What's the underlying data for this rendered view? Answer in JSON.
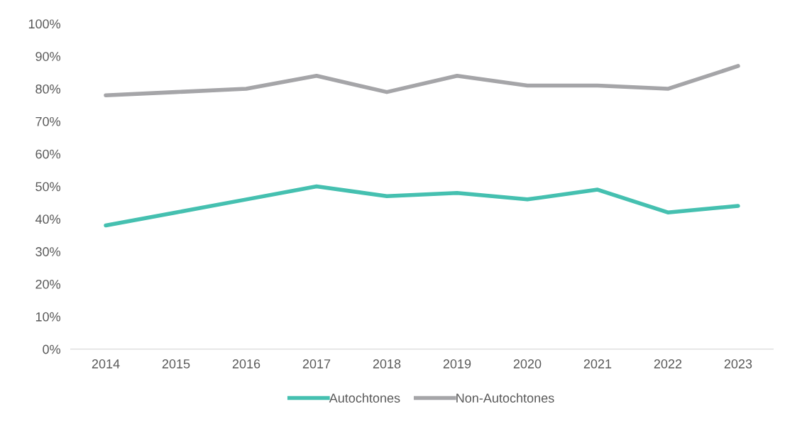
{
  "chart_data": {
    "type": "line",
    "categories": [
      "2014",
      "2015",
      "2016",
      "2017",
      "2018",
      "2019",
      "2020",
      "2021",
      "2022",
      "2023"
    ],
    "series": [
      {
        "name": "Autochtones",
        "color": "#45c0b0",
        "values": [
          38,
          42,
          46,
          50,
          47,
          48,
          46,
          49,
          42,
          44
        ]
      },
      {
        "name": "Non-Autochtones",
        "color": "#a5a5a8",
        "values": [
          78,
          79,
          80,
          84,
          79,
          84,
          81,
          81,
          80,
          87
        ]
      }
    ],
    "ylim": [
      0,
      100
    ],
    "yticks": [
      {
        "value": 0,
        "label": "0%"
      },
      {
        "value": 10,
        "label": "10%"
      },
      {
        "value": 20,
        "label": "20%"
      },
      {
        "value": 30,
        "label": "30%"
      },
      {
        "value": 40,
        "label": "40%"
      },
      {
        "value": 50,
        "label": "50%"
      },
      {
        "value": 60,
        "label": "60%"
      },
      {
        "value": 70,
        "label": "70%"
      },
      {
        "value": 80,
        "label": "80%"
      },
      {
        "value": 90,
        "label": "90%"
      },
      {
        "value": 100,
        "label": "100%"
      }
    ],
    "grid": false,
    "legend": "bottom",
    "marker": "none",
    "line_style": "solid"
  }
}
